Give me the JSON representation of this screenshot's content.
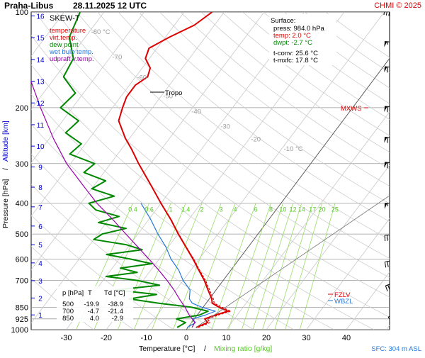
{
  "header": {
    "station": "Praha-Libus",
    "datetime": "28.11.2025 12 UTC",
    "copyright": "CHMI © 2025"
  },
  "legend": {
    "title": "SKEW-T",
    "items": [
      {
        "label": "temperature",
        "color": "#dd0000"
      },
      {
        "label": "virt.temp.",
        "color": "#dd0000"
      },
      {
        "label": "dew point",
        "color": "#008800"
      },
      {
        "label": "wet bulb temp.",
        "color": "#2277dd"
      },
      {
        "label": "udpraft v.temp.",
        "color": "#9900aa"
      }
    ]
  },
  "surface": {
    "title": "Surface:",
    "lines": [
      {
        "text": "press: 984.0 hPa",
        "color": "#000000"
      },
      {
        "text": "temp: 2.0 °C",
        "color": "#dd0000"
      },
      {
        "text": "dwpt: -2.7 °C",
        "color": "#008800"
      },
      {
        "text": "t-conv: 25.6 °C",
        "color": "#000000"
      },
      {
        "text": "t-mxfc: 17.8 °C",
        "color": "#000000"
      }
    ]
  },
  "table": {
    "headers": [
      "p [hPa]",
      "T",
      "Td [°C]"
    ],
    "rows": [
      [
        "500",
        "-19.9",
        "-38.9"
      ],
      [
        "700",
        "-4.7",
        "-21.4"
      ],
      [
        "850",
        "4.0",
        "-2.9"
      ]
    ]
  },
  "annotations": {
    "tropo": "Tropo",
    "mxws": "MXWS",
    "fzl": "FZLV",
    "wbzl": "WBZL",
    "sfc": "SFC: 304 m ASL"
  },
  "axes": {
    "ylabel_pressure": "Pressure [hPa]",
    "ylabel_sep": "/",
    "ylabel_altitude": "Altitude [km]",
    "xlabel_temp": "Temperature [°C]",
    "xlabel_sep": "/",
    "xlabel_mix": "Mixing ratio [g/kg]"
  },
  "chart_data": {
    "type": "line",
    "title": "SKEW-T",
    "x_range": [
      -35,
      45
    ],
    "y_scale": "log",
    "pressure_ticks": [
      100,
      200,
      300,
      400,
      500,
      600,
      700,
      850,
      925,
      1000
    ],
    "pressure_tick_labels": [
      "100",
      "200",
      "300",
      "400",
      "500",
      "600",
      "700",
      "850",
      "925",
      "1000"
    ],
    "altitude_ticks_km": [
      1,
      2,
      3,
      4,
      5,
      6,
      7,
      8,
      9,
      10,
      11,
      12,
      13,
      14,
      15,
      16
    ],
    "altitude_tick_labels": [
      "1",
      "2",
      "3",
      "4",
      "5",
      "6",
      "7",
      "8",
      "9",
      "10",
      "11",
      "12",
      "13",
      "14",
      "15",
      "16"
    ],
    "temp_ticks": [
      -30,
      -20,
      -10,
      0,
      10,
      20,
      30,
      40
    ],
    "temp_tick_labels": [
      "-30",
      "-20",
      "-10",
      "0",
      "10",
      "20",
      "30",
      "40"
    ],
    "isotherm_labels": [
      "-80 °C",
      "-70",
      "-60",
      "-50",
      "-40",
      "-30",
      "-20",
      "-10 °C"
    ],
    "mixing_ratio_labels": [
      "0.4",
      "0.6",
      "1",
      "1.4",
      "2",
      "3",
      "4",
      "6",
      "8",
      "10",
      "12",
      "14",
      "17",
      "20",
      "25"
    ],
    "series": [
      {
        "name": "temperature",
        "color": "#dd0000",
        "points": [
          [
            984,
            2.0
          ],
          [
            950,
            4.0
          ],
          [
            925,
            2.6
          ],
          [
            900,
            4.5
          ],
          [
            875,
            7.0
          ],
          [
            850,
            4.0
          ],
          [
            825,
            1.5
          ],
          [
            800,
            0.6
          ],
          [
            750,
            -2.0
          ],
          [
            700,
            -4.7
          ],
          [
            650,
            -8.0
          ],
          [
            600,
            -11.5
          ],
          [
            550,
            -15.5
          ],
          [
            500,
            -19.9
          ],
          [
            450,
            -24.5
          ],
          [
            400,
            -30.0
          ],
          [
            350,
            -36.0
          ],
          [
            300,
            -43.0
          ],
          [
            270,
            -47.5
          ],
          [
            250,
            -51.0
          ],
          [
            220,
            -56.0
          ],
          [
            200,
            -57.5
          ],
          [
            185,
            -58.5
          ],
          [
            170,
            -58.5
          ],
          [
            160,
            -57.0
          ],
          [
            150,
            -58.0
          ],
          [
            140,
            -61.0
          ],
          [
            130,
            -62.0
          ],
          [
            120,
            -59.0
          ],
          [
            110,
            -55.0
          ],
          [
            100,
            -53.0
          ]
        ]
      },
      {
        "name": "virt.temp.",
        "color": "#dd0000",
        "points": [
          [
            984,
            2.6
          ],
          [
            950,
            4.6
          ],
          [
            925,
            3.3
          ],
          [
            900,
            5.2
          ],
          [
            875,
            7.7
          ],
          [
            850,
            4.7
          ],
          [
            825,
            2.0
          ],
          [
            800,
            1.0
          ],
          [
            750,
            -1.6
          ],
          [
            700,
            -4.4
          ],
          [
            650,
            -7.8
          ],
          [
            600,
            -11.3
          ],
          [
            550,
            -15.4
          ],
          [
            500,
            -19.8
          ],
          [
            450,
            -24.4
          ],
          [
            400,
            -30.0
          ]
        ]
      },
      {
        "name": "dew point",
        "color": "#008800",
        "points": [
          [
            984,
            -2.7
          ],
          [
            950,
            -1.5
          ],
          [
            925,
            -4.5
          ],
          [
            900,
            0.5
          ],
          [
            875,
            2.0
          ],
          [
            850,
            -2.9
          ],
          [
            825,
            -12.0
          ],
          [
            800,
            -20.0
          ],
          [
            775,
            -14.0
          ],
          [
            750,
            -25.0
          ],
          [
            725,
            -15.0
          ],
          [
            700,
            -21.4
          ],
          [
            680,
            -30.0
          ],
          [
            660,
            -23.0
          ],
          [
            640,
            -28.0
          ],
          [
            620,
            -21.0
          ],
          [
            600,
            -27.0
          ],
          [
            580,
            -34.0
          ],
          [
            560,
            -26.0
          ],
          [
            540,
            -31.0
          ],
          [
            520,
            -40.0
          ],
          [
            500,
            -38.9
          ],
          [
            480,
            -34.0
          ],
          [
            460,
            -42.0
          ],
          [
            440,
            -38.0
          ],
          [
            420,
            -45.0
          ],
          [
            400,
            -48.0
          ],
          [
            380,
            -43.0
          ],
          [
            360,
            -50.0
          ],
          [
            340,
            -48.0
          ],
          [
            320,
            -55.0
          ],
          [
            300,
            -54.0
          ],
          [
            280,
            -62.0
          ],
          [
            260,
            -61.0
          ],
          [
            240,
            -67.0
          ],
          [
            220,
            -66.0
          ],
          [
            200,
            -73.0
          ],
          [
            180,
            -72.0
          ],
          [
            160,
            -78.0
          ],
          [
            140,
            -79.0
          ],
          [
            120,
            -84.0
          ],
          [
            100,
            -86.0
          ]
        ]
      },
      {
        "name": "wet bulb temp.",
        "color": "#2277dd",
        "points": [
          [
            984,
            -0.2
          ],
          [
            950,
            1.0
          ],
          [
            925,
            -0.5
          ],
          [
            900,
            2.0
          ],
          [
            875,
            3.8
          ],
          [
            850,
            -0.3
          ],
          [
            825,
            -3.5
          ],
          [
            800,
            -5.0
          ],
          [
            750,
            -6.5
          ],
          [
            700,
            -10.0
          ],
          [
            650,
            -13.0
          ],
          [
            600,
            -17.0
          ],
          [
            550,
            -20.5
          ],
          [
            500,
            -25.0
          ],
          [
            450,
            -29.5
          ],
          [
            400,
            -35.0
          ]
        ]
      },
      {
        "name": "udpraft v.temp.",
        "color": "#9900aa",
        "points": [
          [
            984,
            1.0
          ],
          [
            950,
            0.8
          ],
          [
            925,
            -0.5
          ],
          [
            900,
            -2.0
          ],
          [
            850,
            -4.5
          ],
          [
            800,
            -7.5
          ],
          [
            750,
            -10.5
          ],
          [
            700,
            -14.0
          ],
          [
            650,
            -18.0
          ],
          [
            600,
            -22.5
          ],
          [
            550,
            -27.5
          ],
          [
            500,
            -33.0
          ],
          [
            450,
            -39.0
          ],
          [
            400,
            -46.0
          ],
          [
            350,
            -53.0
          ],
          [
            300,
            -61.0
          ],
          [
            250,
            -69.0
          ],
          [
            200,
            -78.0
          ],
          [
            150,
            -89.0
          ],
          [
            100,
            -100.0
          ]
        ]
      }
    ],
    "wind_barbs": [
      {
        "p": 984,
        "dir": 160,
        "kt": 5
      },
      {
        "p": 925,
        "dir": 200,
        "kt": 10
      },
      {
        "p": 850,
        "dir": 230,
        "kt": 20
      },
      {
        "p": 700,
        "dir": 250,
        "kt": 30
      },
      {
        "p": 600,
        "dir": 260,
        "kt": 35
      },
      {
        "p": 500,
        "dir": 265,
        "kt": 45
      },
      {
        "p": 400,
        "dir": 270,
        "kt": 55
      },
      {
        "p": 300,
        "dir": 275,
        "kt": 65
      },
      {
        "p": 250,
        "dir": 275,
        "kt": 75
      },
      {
        "p": 200,
        "dir": 275,
        "kt": 85
      },
      {
        "p": 150,
        "dir": 275,
        "kt": 70
      },
      {
        "p": 125,
        "dir": 275,
        "kt": 55
      },
      {
        "p": 100,
        "dir": 280,
        "kt": 40
      }
    ]
  }
}
